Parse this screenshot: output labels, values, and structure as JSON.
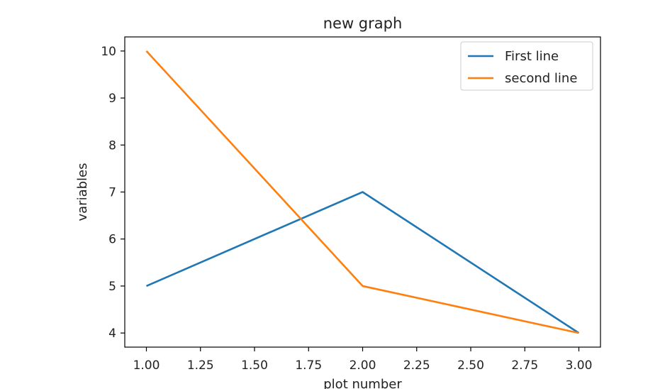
{
  "chart_data": {
    "type": "line",
    "title": "new graph",
    "xlabel": "plot number",
    "ylabel": "variables",
    "x": [
      1,
      2,
      3
    ],
    "series": [
      {
        "name": "First line",
        "values": [
          5,
          7,
          4
        ],
        "color": "#1f77b4"
      },
      {
        "name": "second line",
        "values": [
          10,
          5,
          4
        ],
        "color": "#ff7f0e"
      }
    ],
    "xlim": [
      0.9,
      3.1
    ],
    "ylim": [
      3.7,
      10.3
    ],
    "xticks": [
      1.0,
      1.25,
      1.5,
      1.75,
      2.0,
      2.25,
      2.5,
      2.75,
      3.0
    ],
    "xtick_labels": [
      "1.00",
      "1.25",
      "1.50",
      "1.75",
      "2.00",
      "2.25",
      "2.50",
      "2.75",
      "3.00"
    ],
    "yticks": [
      4,
      5,
      6,
      7,
      8,
      9,
      10
    ],
    "ytick_labels": [
      "4",
      "5",
      "6",
      "7",
      "8",
      "9",
      "10"
    ],
    "grid": false,
    "legend_position": "top-right"
  }
}
